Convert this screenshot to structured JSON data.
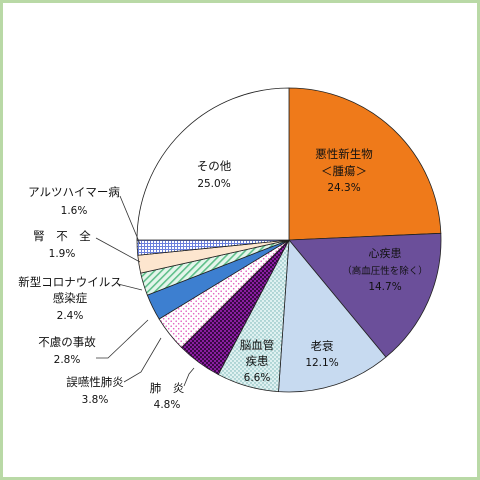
{
  "chart_data": {
    "type": "pie",
    "title": "",
    "start": "12 o'clock, clockwise",
    "slices": [
      {
        "name": "悪性新生物",
        "sub": "＜腫瘍＞",
        "value": 24.3,
        "value_text": "24.3%",
        "color": "#ef7a1a",
        "pattern": "solid"
      },
      {
        "name": "心疾患",
        "sub": "（高血圧性を除く）",
        "value": 14.7,
        "value_text": "14.7%",
        "color": "#6b4f9a",
        "pattern": "solid"
      },
      {
        "name": "老衰",
        "sub": "",
        "value": 12.1,
        "value_text": "12.1%",
        "color": "#c7daf0",
        "pattern": "solid"
      },
      {
        "name": "脳血管",
        "sub": "疾患",
        "value": 6.6,
        "value_text": "6.6%",
        "color": "#dff1f1",
        "pattern": "dots"
      },
      {
        "name": "肺　炎",
        "sub": "",
        "value": 4.8,
        "value_text": "4.8%",
        "color": "#8a1ea0",
        "pattern": "checker"
      },
      {
        "name": "誤嚥性肺炎",
        "sub": "",
        "value": 3.8,
        "value_text": "3.8%",
        "color": "#fde7f5",
        "pattern": "dots-pink"
      },
      {
        "name": "不慮の事故",
        "sub": "",
        "value": 2.8,
        "value_text": "2.8%",
        "color": "#3d7fd0",
        "pattern": "solid"
      },
      {
        "name": "新型コロナウイルス",
        "sub": "感染症",
        "value": 2.4,
        "value_text": "2.4%",
        "color": "#d9f0e4",
        "pattern": "diag"
      },
      {
        "name": "腎　不　全",
        "sub": "",
        "value": 1.9,
        "value_text": "1.9%",
        "color": "#fde6cf",
        "pattern": "solid"
      },
      {
        "name": "アルツハイマー病",
        "sub": "",
        "value": 1.6,
        "value_text": "1.6%",
        "color": "#e9eefb",
        "pattern": "grid"
      },
      {
        "name": "その他",
        "sub": "",
        "value": 25.0,
        "value_text": "25.0%",
        "color": "#ffffff",
        "pattern": "solid"
      }
    ]
  }
}
